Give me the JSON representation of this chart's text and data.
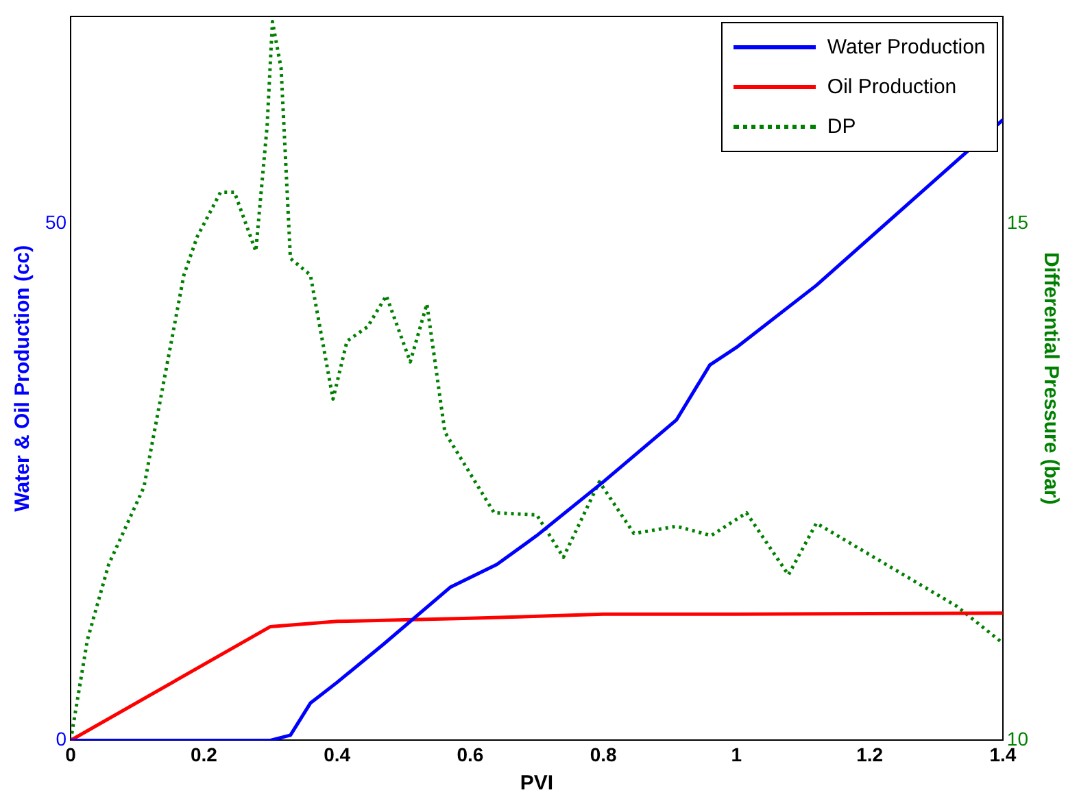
{
  "chart_data": {
    "type": "line",
    "xlabel": "PVI",
    "ylabel": "Water & Oil Production (cc)",
    "y2label": "Differential Pressure (bar)",
    "xlim": [
      0,
      1.4
    ],
    "xticks": [
      0,
      0.2,
      0.4,
      0.6,
      0.8,
      1,
      1.2,
      1.4
    ],
    "ylim": [
      0,
      70
    ],
    "yticks": [
      0,
      50
    ],
    "y2lim": [
      10,
      17
    ],
    "y2ticks": [
      10,
      15
    ],
    "grid": false,
    "legend": "top right",
    "marker": "none",
    "series": [
      {
        "name": "Water Production",
        "color": "#0000ff",
        "line_style": "solid",
        "x": [
          0,
          0.3,
          0.33,
          0.36,
          0.4,
          0.47,
          0.57,
          0.64,
          0.7,
          0.8,
          0.91,
          0.96,
          1.0,
          1.12,
          1.4
        ],
        "values": [
          0,
          0,
          0.5,
          3.6,
          5.6,
          9.3,
          14.8,
          17,
          19.8,
          25,
          31,
          36.3,
          38,
          44,
          60
        ]
      },
      {
        "name": "Oil Production",
        "color": "#ff0000",
        "line_style": "solid",
        "x": [
          0,
          0.3,
          0.4,
          0.6,
          0.8,
          1.0,
          1.4
        ],
        "values": [
          0,
          11,
          11.5,
          11.8,
          12.2,
          12.2,
          12.3
        ]
      },
      {
        "name": "DP",
        "color": "#008000",
        "line_style": "dotted",
        "axis": "y2",
        "x": [
          0,
          0.025,
          0.057,
          0.11,
          0.17,
          0.19,
          0.225,
          0.246,
          0.278,
          0.295,
          0.303,
          0.316,
          0.33,
          0.36,
          0.394,
          0.415,
          0.446,
          0.474,
          0.51,
          0.535,
          0.562,
          0.636,
          0.7,
          0.74,
          0.794,
          0.846,
          0.91,
          0.962,
          1.015,
          1.078,
          1.12,
          1.33,
          1.4
        ],
        "values": [
          10,
          10.97,
          11.7,
          12.45,
          14.5,
          14.87,
          15.3,
          15.3,
          14.73,
          15.94,
          16.95,
          16.5,
          14.66,
          14.5,
          13.3,
          13.86,
          14.0,
          14.3,
          13.66,
          14.22,
          12.98,
          12.2,
          12.18,
          11.77,
          12.5,
          12.0,
          12.07,
          11.98,
          12.2,
          11.6,
          12.1,
          11.3,
          10.94
        ]
      }
    ]
  }
}
